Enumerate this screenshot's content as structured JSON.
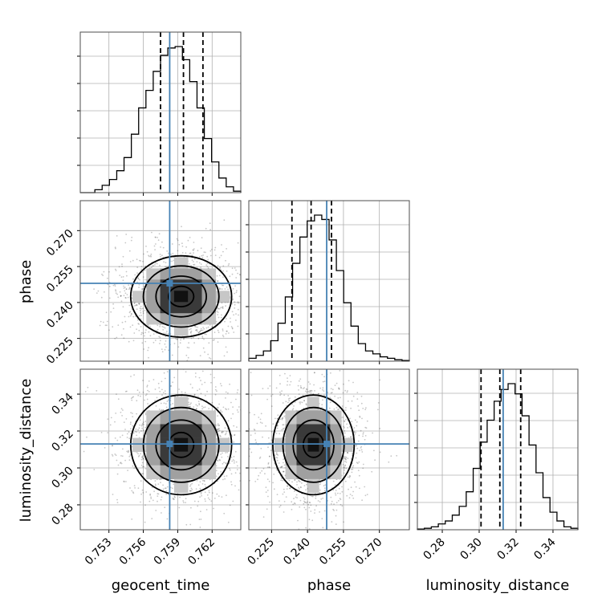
{
  "chart_data": {
    "type": "corner",
    "parameters": [
      {
        "key": "geocent_time",
        "label": "geocent_time",
        "range": [
          0.7505,
          0.7645
        ],
        "ticks": [
          0.753,
          0.756,
          0.759,
          0.762
        ],
        "tick_labels": [
          "0.753",
          "0.756",
          "0.759",
          "0.762"
        ],
        "truth": 0.7583,
        "quantiles": [
          0.7575,
          0.7595,
          0.7612
        ]
      },
      {
        "key": "phase",
        "label": "phase",
        "range": [
          0.2155,
          0.2825
        ],
        "ticks": [
          0.225,
          0.24,
          0.255,
          0.27
        ],
        "tick_labels": [
          "0.225",
          "0.240",
          "0.255",
          "0.270"
        ],
        "truth": 0.248,
        "quantiles": [
          0.2335,
          0.2415,
          0.25
        ]
      },
      {
        "key": "luminosity_distance",
        "label": "luminosity_distance",
        "range": [
          0.2665,
          0.3535
        ],
        "ticks": [
          0.28,
          0.3,
          0.32,
          0.34
        ],
        "tick_labels": [
          "0.28",
          "0.30",
          "0.32",
          "0.34"
        ],
        "truth": 0.313,
        "quantiles": [
          0.301,
          0.3112,
          0.3225
        ]
      }
    ],
    "histograms": [
      [
        0.0,
        0.0,
        0.02,
        0.05,
        0.09,
        0.15,
        0.24,
        0.4,
        0.58,
        0.7,
        0.83,
        0.94,
        0.99,
        1.0,
        0.91,
        0.76,
        0.58,
        0.37,
        0.21,
        0.1,
        0.04,
        0.01
      ],
      [
        0.02,
        0.04,
        0.07,
        0.14,
        0.26,
        0.44,
        0.67,
        0.85,
        0.96,
        1.0,
        0.97,
        0.83,
        0.62,
        0.4,
        0.24,
        0.12,
        0.07,
        0.05,
        0.03,
        0.02,
        0.01,
        0.005
      ],
      [
        0.005,
        0.01,
        0.02,
        0.04,
        0.06,
        0.1,
        0.16,
        0.26,
        0.42,
        0.6,
        0.75,
        0.88,
        0.96,
        1.0,
        0.93,
        0.78,
        0.58,
        0.39,
        0.22,
        0.12,
        0.06,
        0.02,
        0.01
      ]
    ],
    "correlations": {
      "1-0": -0.05,
      "2-0": 0.05,
      "2-1": -0.02
    },
    "sample_sigma": [
      0.0022,
      0.0085,
      0.0135
    ],
    "sample_mean": [
      0.7593,
      0.2425,
      0.3125
    ],
    "truth_color": "#4682b4",
    "line_color": "#000000",
    "grid": true,
    "contour_levels": [
      0.5,
      1.0,
      1.5,
      2.0
    ]
  }
}
